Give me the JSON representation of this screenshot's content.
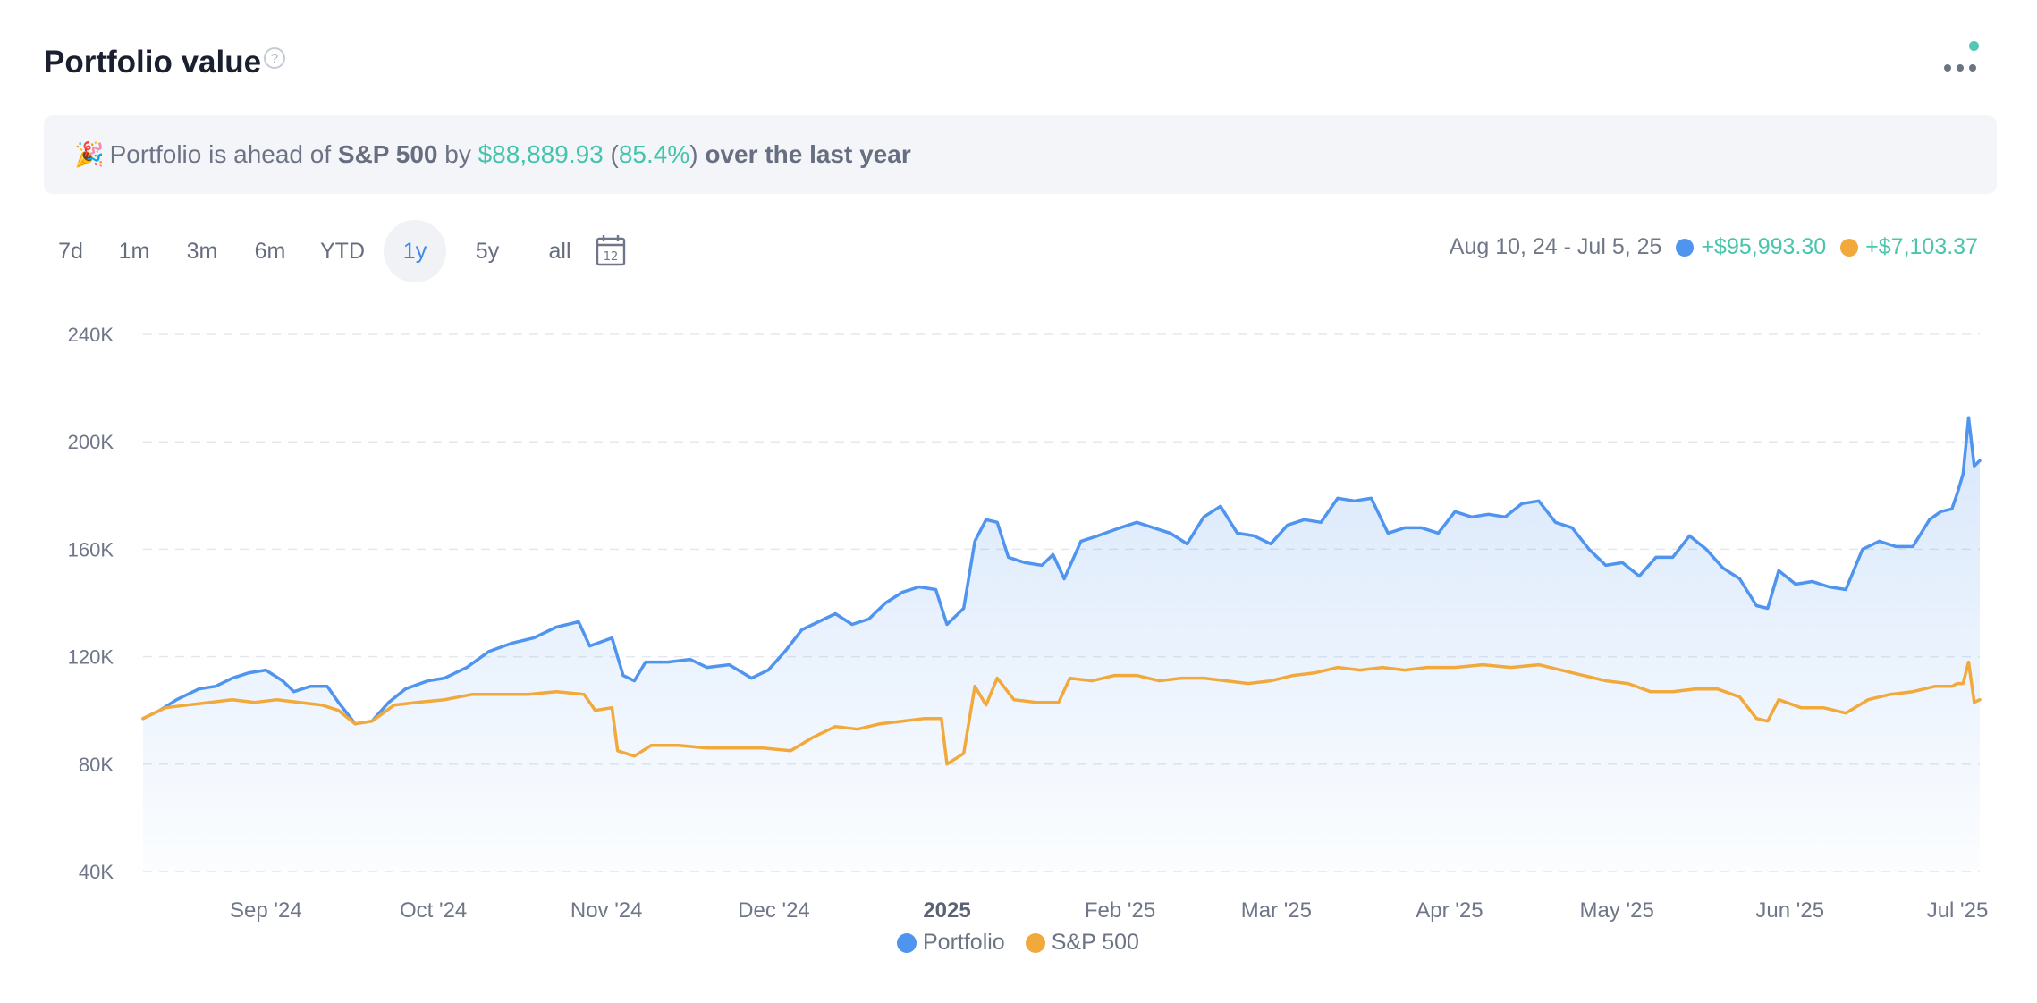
{
  "header": {
    "title": "Portfolio value",
    "help_glyph": "?"
  },
  "banner": {
    "emoji": "🎉",
    "prefix": "Portfolio is ahead of",
    "benchmark": "S&P 500",
    "by_word": "by",
    "amount": "$88,889.93",
    "paren_open": "(",
    "percent": "85.4%",
    "paren_close": ")",
    "suffix": "over the last year"
  },
  "periods": [
    "7d",
    "1m",
    "3m",
    "6m",
    "YTD",
    "1y",
    "5y",
    "all"
  ],
  "active_period": "1y",
  "calendar_icon_number": "12",
  "summary": {
    "date_range": "Aug 10, 24 - Jul 5, 25",
    "portfolio_change": "+$95,993.30",
    "sp500_change": "+$7,103.37"
  },
  "colors": {
    "portfolio": "#4f94ef",
    "sp500": "#f2a93b",
    "positive": "#45c4ad",
    "grid": "#e4e7ee",
    "axis_text": "#6f7688"
  },
  "chart_data": {
    "type": "line",
    "x_start": "2024-08-10",
    "x_end": "2025-07-05",
    "ylim": [
      40000,
      240000
    ],
    "y_ticks": [
      40000,
      80000,
      120000,
      160000,
      200000,
      240000
    ],
    "y_tick_labels": [
      "40K",
      "80K",
      "120K",
      "160K",
      "200K",
      "240K"
    ],
    "x_ticks": [
      {
        "date": "2024-09-01",
        "label": "Sep '24",
        "bold": false
      },
      {
        "date": "2024-10-01",
        "label": "Oct '24",
        "bold": false
      },
      {
        "date": "2024-11-01",
        "label": "Nov '24",
        "bold": false
      },
      {
        "date": "2024-12-01",
        "label": "Dec '24",
        "bold": false
      },
      {
        "date": "2025-01-01",
        "label": "2025",
        "bold": true
      },
      {
        "date": "2025-02-01",
        "label": "Feb '25",
        "bold": false
      },
      {
        "date": "2025-03-01",
        "label": "Mar '25",
        "bold": false
      },
      {
        "date": "2025-04-01",
        "label": "Apr '25",
        "bold": false
      },
      {
        "date": "2025-05-01",
        "label": "May '25",
        "bold": false
      },
      {
        "date": "2025-06-01",
        "label": "Jun '25",
        "bold": false
      },
      {
        "date": "2025-07-01",
        "label": "Jul '25",
        "bold": false
      }
    ],
    "grid": true,
    "legend_position": "bottom-center",
    "series": [
      {
        "name": "Portfolio",
        "color": "#4f94ef",
        "area": true,
        "points": [
          [
            "2024-08-10",
            97000
          ],
          [
            "2024-08-13",
            100000
          ],
          [
            "2024-08-16",
            104000
          ],
          [
            "2024-08-20",
            108000
          ],
          [
            "2024-08-23",
            109000
          ],
          [
            "2024-08-26",
            112000
          ],
          [
            "2024-08-29",
            114000
          ],
          [
            "2024-09-01",
            115000
          ],
          [
            "2024-09-04",
            111000
          ],
          [
            "2024-09-06",
            107000
          ],
          [
            "2024-09-09",
            109000
          ],
          [
            "2024-09-12",
            109000
          ],
          [
            "2024-09-14",
            103000
          ],
          [
            "2024-09-17",
            95000
          ],
          [
            "2024-09-20",
            96000
          ],
          [
            "2024-09-23",
            103000
          ],
          [
            "2024-09-26",
            108000
          ],
          [
            "2024-09-30",
            111000
          ],
          [
            "2024-10-03",
            112000
          ],
          [
            "2024-10-07",
            116000
          ],
          [
            "2024-10-11",
            122000
          ],
          [
            "2024-10-15",
            125000
          ],
          [
            "2024-10-19",
            127000
          ],
          [
            "2024-10-23",
            131000
          ],
          [
            "2024-10-27",
            133000
          ],
          [
            "2024-10-29",
            124000
          ],
          [
            "2024-11-02",
            127000
          ],
          [
            "2024-11-04",
            113000
          ],
          [
            "2024-11-06",
            111000
          ],
          [
            "2024-11-08",
            118000
          ],
          [
            "2024-11-12",
            118000
          ],
          [
            "2024-11-16",
            119000
          ],
          [
            "2024-11-19",
            116000
          ],
          [
            "2024-11-23",
            117000
          ],
          [
            "2024-11-27",
            112000
          ],
          [
            "2024-11-30",
            115000
          ],
          [
            "2024-12-03",
            122000
          ],
          [
            "2024-12-06",
            130000
          ],
          [
            "2024-12-09",
            133000
          ],
          [
            "2024-12-12",
            136000
          ],
          [
            "2024-12-15",
            132000
          ],
          [
            "2024-12-18",
            134000
          ],
          [
            "2024-12-21",
            140000
          ],
          [
            "2024-12-24",
            144000
          ],
          [
            "2024-12-27",
            146000
          ],
          [
            "2024-12-30",
            145000
          ],
          [
            "2025-01-01",
            132000
          ],
          [
            "2025-01-04",
            138000
          ],
          [
            "2025-01-06",
            163000
          ],
          [
            "2025-01-08",
            171000
          ],
          [
            "2025-01-10",
            170000
          ],
          [
            "2025-01-12",
            157000
          ],
          [
            "2025-01-15",
            155000
          ],
          [
            "2025-01-18",
            154000
          ],
          [
            "2025-01-20",
            158000
          ],
          [
            "2025-01-22",
            149000
          ],
          [
            "2025-01-25",
            163000
          ],
          [
            "2025-01-28",
            165000
          ],
          [
            "2025-02-01",
            168000
          ],
          [
            "2025-02-04",
            170000
          ],
          [
            "2025-02-07",
            168000
          ],
          [
            "2025-02-10",
            166000
          ],
          [
            "2025-02-13",
            162000
          ],
          [
            "2025-02-16",
            172000
          ],
          [
            "2025-02-19",
            176000
          ],
          [
            "2025-02-22",
            166000
          ],
          [
            "2025-02-25",
            165000
          ],
          [
            "2025-02-28",
            162000
          ],
          [
            "2025-03-03",
            169000
          ],
          [
            "2025-03-06",
            171000
          ],
          [
            "2025-03-09",
            170000
          ],
          [
            "2025-03-12",
            179000
          ],
          [
            "2025-03-15",
            178000
          ],
          [
            "2025-03-18",
            179000
          ],
          [
            "2025-03-21",
            166000
          ],
          [
            "2025-03-24",
            168000
          ],
          [
            "2025-03-27",
            168000
          ],
          [
            "2025-03-30",
            166000
          ],
          [
            "2025-04-02",
            174000
          ],
          [
            "2025-04-05",
            172000
          ],
          [
            "2025-04-08",
            173000
          ],
          [
            "2025-04-11",
            172000
          ],
          [
            "2025-04-14",
            177000
          ],
          [
            "2025-04-17",
            178000
          ],
          [
            "2025-04-20",
            170000
          ],
          [
            "2025-04-23",
            168000
          ],
          [
            "2025-04-26",
            160000
          ],
          [
            "2025-04-29",
            154000
          ],
          [
            "2025-05-02",
            155000
          ],
          [
            "2025-05-05",
            150000
          ],
          [
            "2025-05-08",
            157000
          ],
          [
            "2025-05-11",
            157000
          ],
          [
            "2025-05-14",
            165000
          ],
          [
            "2025-05-17",
            160000
          ],
          [
            "2025-05-20",
            153000
          ],
          [
            "2025-05-23",
            149000
          ],
          [
            "2025-05-26",
            139000
          ],
          [
            "2025-05-28",
            138000
          ],
          [
            "2025-05-30",
            152000
          ],
          [
            "2025-06-02",
            147000
          ],
          [
            "2025-06-05",
            148000
          ],
          [
            "2025-06-08",
            146000
          ],
          [
            "2025-06-11",
            145000
          ],
          [
            "2025-06-14",
            160000
          ],
          [
            "2025-06-17",
            163000
          ],
          [
            "2025-06-20",
            161000
          ],
          [
            "2025-06-23",
            161000
          ],
          [
            "2025-06-26",
            171000
          ],
          [
            "2025-06-28",
            174000
          ],
          [
            "2025-06-30",
            175000
          ],
          [
            "2025-07-01",
            181000
          ],
          [
            "2025-07-02",
            188000
          ],
          [
            "2025-07-03",
            209000
          ],
          [
            "2025-07-04",
            191000
          ],
          [
            "2025-07-05",
            193000
          ]
        ]
      },
      {
        "name": "S&P 500",
        "color": "#f2a93b",
        "area": false,
        "points": [
          [
            "2024-08-10",
            97000
          ],
          [
            "2024-08-14",
            101000
          ],
          [
            "2024-08-18",
            102000
          ],
          [
            "2024-08-22",
            103000
          ],
          [
            "2024-08-26",
            104000
          ],
          [
            "2024-08-30",
            103000
          ],
          [
            "2024-09-03",
            104000
          ],
          [
            "2024-09-07",
            103000
          ],
          [
            "2024-09-11",
            102000
          ],
          [
            "2024-09-14",
            100000
          ],
          [
            "2024-09-17",
            95000
          ],
          [
            "2024-09-20",
            96000
          ],
          [
            "2024-09-24",
            102000
          ],
          [
            "2024-09-28",
            103000
          ],
          [
            "2024-10-03",
            104000
          ],
          [
            "2024-10-08",
            106000
          ],
          [
            "2024-10-13",
            106000
          ],
          [
            "2024-10-18",
            106000
          ],
          [
            "2024-10-23",
            107000
          ],
          [
            "2024-10-28",
            106000
          ],
          [
            "2024-10-30",
            100000
          ],
          [
            "2024-11-02",
            101000
          ],
          [
            "2024-11-03",
            85000
          ],
          [
            "2024-11-06",
            83000
          ],
          [
            "2024-11-09",
            87000
          ],
          [
            "2024-11-14",
            87000
          ],
          [
            "2024-11-19",
            86000
          ],
          [
            "2024-11-24",
            86000
          ],
          [
            "2024-11-29",
            86000
          ],
          [
            "2024-12-04",
            85000
          ],
          [
            "2024-12-08",
            90000
          ],
          [
            "2024-12-12",
            94000
          ],
          [
            "2024-12-16",
            93000
          ],
          [
            "2024-12-20",
            95000
          ],
          [
            "2024-12-24",
            96000
          ],
          [
            "2024-12-28",
            97000
          ],
          [
            "2024-12-31",
            97000
          ],
          [
            "2025-01-01",
            80000
          ],
          [
            "2025-01-04",
            84000
          ],
          [
            "2025-01-06",
            109000
          ],
          [
            "2025-01-08",
            102000
          ],
          [
            "2025-01-10",
            112000
          ],
          [
            "2025-01-13",
            104000
          ],
          [
            "2025-01-17",
            103000
          ],
          [
            "2025-01-21",
            103000
          ],
          [
            "2025-01-23",
            112000
          ],
          [
            "2025-01-27",
            111000
          ],
          [
            "2025-01-31",
            113000
          ],
          [
            "2025-02-04",
            113000
          ],
          [
            "2025-02-08",
            111000
          ],
          [
            "2025-02-12",
            112000
          ],
          [
            "2025-02-16",
            112000
          ],
          [
            "2025-02-20",
            111000
          ],
          [
            "2025-02-24",
            110000
          ],
          [
            "2025-02-28",
            111000
          ],
          [
            "2025-03-04",
            113000
          ],
          [
            "2025-03-08",
            114000
          ],
          [
            "2025-03-12",
            116000
          ],
          [
            "2025-03-16",
            115000
          ],
          [
            "2025-03-20",
            116000
          ],
          [
            "2025-03-24",
            115000
          ],
          [
            "2025-03-28",
            116000
          ],
          [
            "2025-04-02",
            116000
          ],
          [
            "2025-04-07",
            117000
          ],
          [
            "2025-04-12",
            116000
          ],
          [
            "2025-04-17",
            117000
          ],
          [
            "2025-04-21",
            115000
          ],
          [
            "2025-04-25",
            113000
          ],
          [
            "2025-04-29",
            111000
          ],
          [
            "2025-05-03",
            110000
          ],
          [
            "2025-05-07",
            107000
          ],
          [
            "2025-05-11",
            107000
          ],
          [
            "2025-05-15",
            108000
          ],
          [
            "2025-05-19",
            108000
          ],
          [
            "2025-05-23",
            105000
          ],
          [
            "2025-05-26",
            97000
          ],
          [
            "2025-05-28",
            96000
          ],
          [
            "2025-05-30",
            104000
          ],
          [
            "2025-06-03",
            101000
          ],
          [
            "2025-06-07",
            101000
          ],
          [
            "2025-06-11",
            99000
          ],
          [
            "2025-06-15",
            104000
          ],
          [
            "2025-06-19",
            106000
          ],
          [
            "2025-06-23",
            107000
          ],
          [
            "2025-06-27",
            109000
          ],
          [
            "2025-06-30",
            109000
          ],
          [
            "2025-07-01",
            110000
          ],
          [
            "2025-07-02",
            110000
          ],
          [
            "2025-07-03",
            118000
          ],
          [
            "2025-07-04",
            103000
          ],
          [
            "2025-07-05",
            104000
          ]
        ]
      }
    ]
  }
}
